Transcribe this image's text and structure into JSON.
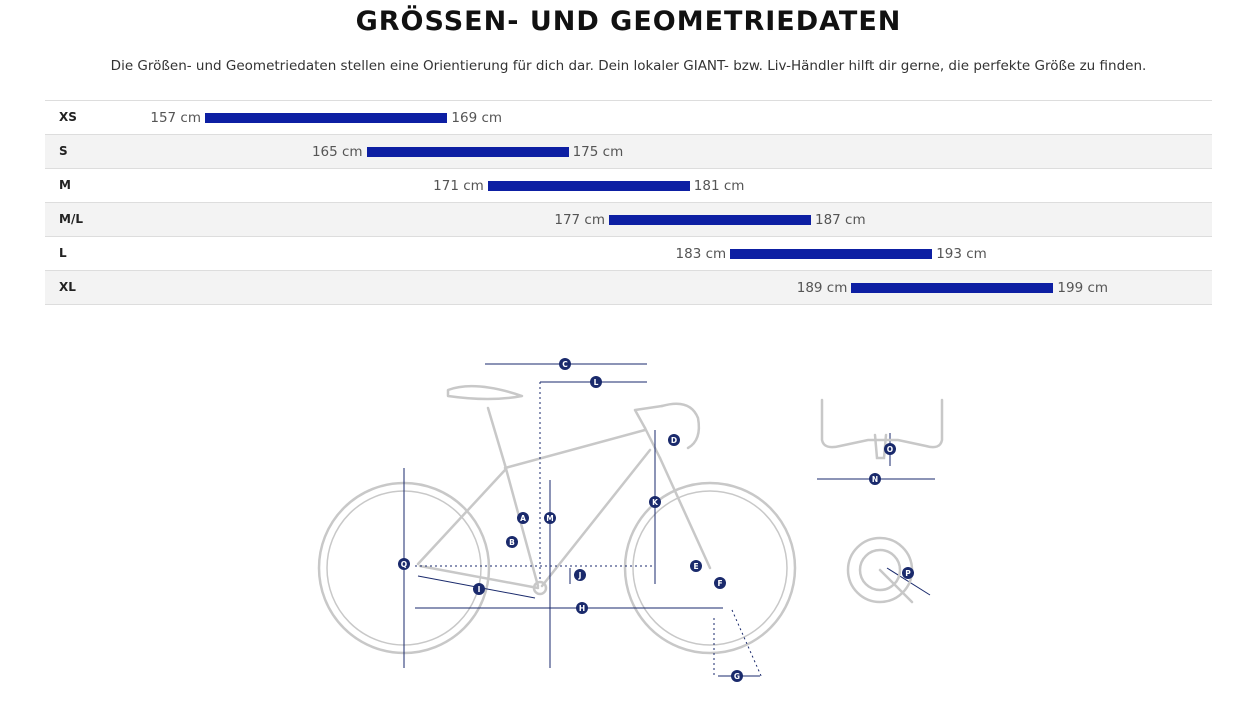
{
  "page": {
    "title": "GRÖSSEN- UND GEOMETRIEDATEN",
    "intro": "Die Größen- und Geometriedaten stellen eine Orientierung für dich dar. Dein lokaler GIANT- bzw. Liv-Händler hilft dir gerne, die perfekte Größe zu finden."
  },
  "chart_data": {
    "type": "bar",
    "orientation": "horizontal-range",
    "title": "",
    "unit": "cm",
    "categories": [
      "XS",
      "S",
      "M",
      "M/L",
      "L",
      "XL"
    ],
    "series": [
      {
        "values": [
          [
            157,
            169
          ],
          [
            165,
            175
          ],
          [
            171,
            181
          ],
          [
            177,
            187
          ],
          [
            183,
            193
          ],
          [
            189,
            199
          ]
        ]
      }
    ],
    "labels": [
      {
        "min": "157 cm",
        "max": "169 cm"
      },
      {
        "min": "165 cm",
        "max": "175 cm"
      },
      {
        "min": "171 cm",
        "max": "181 cm"
      },
      {
        "min": "177 cm",
        "max": "187 cm"
      },
      {
        "min": "183 cm",
        "max": "193 cm"
      },
      {
        "min": "189 cm",
        "max": "199 cm"
      }
    ],
    "bar_color": "#0d1fa3",
    "grid": false
  },
  "geometry": {
    "markers": [
      "A",
      "B",
      "C",
      "D",
      "E",
      "F",
      "G",
      "H",
      "I",
      "J",
      "K",
      "L",
      "M",
      "N",
      "O",
      "P",
      "Q"
    ],
    "line_color": "#c8c8c8",
    "accent_color": "#1a2a6c"
  }
}
